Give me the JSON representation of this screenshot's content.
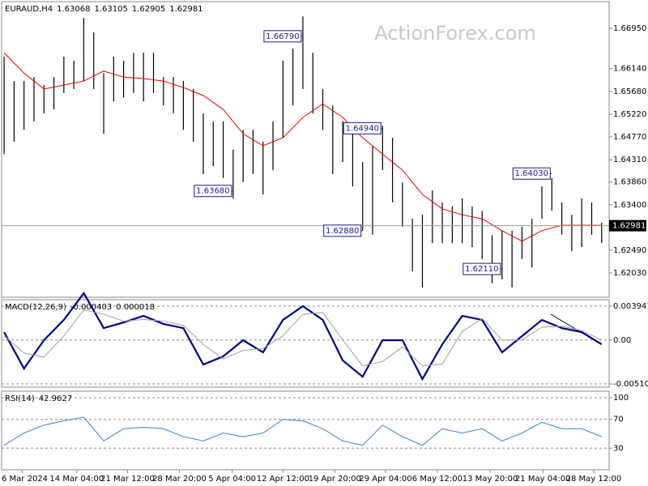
{
  "watermark": "ActionForex.com",
  "chart_data": [
    {
      "type": "ohlc",
      "title": "EURAUD,H4",
      "readout": [
        1.63068,
        1.63105,
        1.62905,
        1.62981
      ],
      "color": "#000000",
      "xlim": [
        -0.25,
        60.75
      ],
      "ylim": [
        1.61541,
        1.67488
      ],
      "yticks": [
        {
          "value": 1.6695,
          "label": "1.66950"
        },
        {
          "value": 1.6614,
          "label": "1.66140"
        },
        {
          "value": 1.6568,
          "label": "1.65680"
        },
        {
          "value": 1.6522,
          "label": "1.65220"
        },
        {
          "value": 1.6477,
          "label": "1.64770"
        },
        {
          "value": 1.6431,
          "label": "1.64310"
        },
        {
          "value": 1.6386,
          "label": "1.63860"
        },
        {
          "value": 1.634,
          "label": "1.63400"
        },
        {
          "value": 1.6249,
          "label": "1.62490"
        },
        {
          "value": 1.6203,
          "label": "1.62030"
        }
      ],
      "high": [
        1.6638,
        1.6589,
        1.6589,
        1.6597,
        1.6581,
        1.6597,
        1.6638,
        1.663,
        1.6716,
        1.6687,
        1.6605,
        1.6638,
        1.663,
        1.6646,
        1.6646,
        1.6646,
        1.6597,
        1.6597,
        1.6589,
        1.6573,
        1.6524,
        1.6508,
        1.6508,
        1.6451,
        1.6491,
        1.6491,
        1.6467,
        1.6508,
        1.663,
        1.6654,
        1.6719,
        1.6646,
        1.6573,
        1.654,
        1.6508,
        1.6483,
        1.6426,
        1.6459,
        1.6499,
        1.6475,
        1.6385,
        1.6312,
        1.632,
        1.6369,
        1.6345,
        1.6337,
        1.6353,
        1.6337,
        1.6328,
        1.6279,
        1.6288,
        1.6288,
        1.6296,
        1.6312,
        1.6377,
        1.6394,
        1.6345,
        1.632,
        1.6353,
        1.6345,
        1.6304
      ],
      "low": [
        1.6442,
        1.6467,
        1.6491,
        1.6508,
        1.6524,
        1.6532,
        1.6565,
        1.6573,
        1.6589,
        1.6573,
        1.6483,
        1.6548,
        1.6556,
        1.6565,
        1.6548,
        1.6565,
        1.654,
        1.6524,
        1.6491,
        1.6467,
        1.6402,
        1.6418,
        1.6394,
        1.6353,
        1.6386,
        1.6402,
        1.6361,
        1.641,
        1.6475,
        1.654,
        1.6573,
        1.6524,
        1.6491,
        1.6402,
        1.6426,
        1.6377,
        1.6288,
        1.628,
        1.641,
        1.6345,
        1.6296,
        1.6206,
        1.6174,
        1.6263,
        1.6263,
        1.6263,
        1.6263,
        1.6255,
        1.6231,
        1.6182,
        1.619,
        1.6174,
        1.6231,
        1.6214,
        1.6312,
        1.6328,
        1.628,
        1.6247,
        1.6255,
        1.628,
        1.6263
      ],
      "ma": {
        "color": "#e00000",
        "x": [
          0,
          2,
          4,
          6,
          8,
          10,
          12,
          14,
          16,
          18,
          20,
          22,
          24,
          26,
          28,
          30,
          32,
          34,
          36,
          38,
          40,
          42,
          44,
          46,
          48,
          50,
          52,
          54,
          56,
          58,
          60
        ],
        "values": [
          1.6646,
          1.6605,
          1.6573,
          1.6581,
          1.6589,
          1.6609,
          1.6597,
          1.6594,
          1.6589,
          1.6576,
          1.656,
          1.6532,
          1.6483,
          1.6459,
          1.6475,
          1.6516,
          1.6543,
          1.6516,
          1.6475,
          1.6442,
          1.641,
          1.6361,
          1.6332,
          1.632,
          1.6312,
          1.6288,
          1.6267,
          1.6288,
          1.6299,
          1.6299,
          1.6299
        ]
      },
      "current_price": 1.62981,
      "annotations": [
        {
          "x": 30,
          "value": 1.6679,
          "label": "1.66790"
        },
        {
          "x": 23,
          "value": 1.6368,
          "label": "1.63680"
        },
        {
          "x": 38,
          "value": 1.6494,
          "label": "1.64940"
        },
        {
          "x": 36,
          "value": 1.6288,
          "label": "1.62880"
        },
        {
          "x": 50,
          "value": 1.6211,
          "label": "1.62110"
        },
        {
          "x": 55,
          "value": 1.6403,
          "label": "1.64030"
        }
      ]
    },
    {
      "type": "line",
      "title": "MACD(12,26,9)",
      "readout": [
        -0.000403,
        1.8e-05
      ],
      "grid": true,
      "xlim": [
        -0.25,
        60.75
      ],
      "ylim": [
        -0.00548,
        0.00469
      ],
      "yticks": [
        0.003941,
        {
          "value": 0,
          "label": "0.00"
        },
        -0.005103
      ],
      "x": [
        0,
        2,
        4,
        6,
        8,
        10,
        12,
        14,
        16,
        18,
        20,
        22,
        24,
        26,
        28,
        30,
        32,
        34,
        36,
        38,
        40,
        42,
        44,
        46,
        48,
        50,
        52,
        54,
        56,
        58,
        60
      ],
      "series": [
        {
          "color": "#00008b",
          "width": 2.2,
          "values": [
            0.00092,
            -0.00332,
            -2e-05,
            0.00234,
            0.00545,
            0.00139,
            0.00205,
            0.00281,
            0.00187,
            0.00139,
            -0.00285,
            -0.0019,
            -2e-05,
            -0.00143,
            0.00234,
            0.00394,
            0.00234,
            -0.00237,
            -0.00426,
            -2e-05,
            -2e-05,
            -0.00454,
            -0.00049,
            0.00281,
            0.00234,
            -0.00143,
            0.00045,
            0.00234,
            0.00139,
            0.00092,
            -0.00049
          ]
        },
        {
          "color": "#a0a0a0",
          "width": 1,
          "values": [
            0.0005,
            -0.0015,
            -0.002,
            0.0005,
            0.0035,
            0.003,
            0.0022,
            0.0024,
            0.0022,
            0.0017,
            -0.0005,
            -0.0022,
            -0.0012,
            -0.001,
            0.0005,
            0.003,
            0.0032,
            0,
            -0.003,
            -0.0025,
            -0.0008,
            -0.003,
            -0.0028,
            0.001,
            0.0025,
            0,
            0,
            0.0015,
            0.0016,
            0.0011,
            0
          ]
        }
      ]
    },
    {
      "type": "line",
      "title": "RSI(14)",
      "readout": [
        42.9627
      ],
      "grid": true,
      "xlim": [
        -0.25,
        60.75
      ],
      "ylim": [
        0,
        109
      ],
      "yticks": [
        100,
        70,
        30
      ],
      "x": [
        0,
        2,
        4,
        6,
        8,
        10,
        12,
        14,
        16,
        18,
        20,
        22,
        24,
        26,
        28,
        30,
        32,
        34,
        36,
        38,
        40,
        42,
        44,
        46,
        48,
        50,
        52,
        54,
        56,
        58,
        60
      ],
      "series": [
        {
          "color": "#3a7fd5",
          "width": 1,
          "values": [
            34,
            51,
            62,
            68,
            73,
            40,
            57,
            59,
            57,
            46,
            40,
            51,
            46,
            51,
            70,
            68,
            57,
            40,
            34,
            62,
            46,
            34,
            57,
            51,
            57,
            40,
            51,
            66,
            57,
            57,
            46
          ]
        }
      ],
      "xticks": [
        {
          "value": 1.8,
          "label": "6 Mar 2024"
        },
        {
          "value": 7.3,
          "label": "14 Mar 04:00"
        },
        {
          "value": 12.4,
          "label": "21 Mar 12:00"
        },
        {
          "value": 17.6,
          "label": "28 Mar 20:00"
        },
        {
          "value": 22.9,
          "label": "5 Apr 04:00"
        },
        {
          "value": 28,
          "label": "12 Apr 12:00"
        },
        {
          "value": 33.2,
          "label": "19 Apr 20:00"
        },
        {
          "value": 38.3,
          "label": "29 Apr 04:00"
        },
        {
          "value": 43.5,
          "label": "6 May 12:00"
        },
        {
          "value": 48.8,
          "label": "13 May 20:00"
        },
        {
          "value": 54.1,
          "label": "21 May 04:00"
        },
        {
          "value": 59.2,
          "label": "28 May 12:00"
        }
      ]
    }
  ]
}
